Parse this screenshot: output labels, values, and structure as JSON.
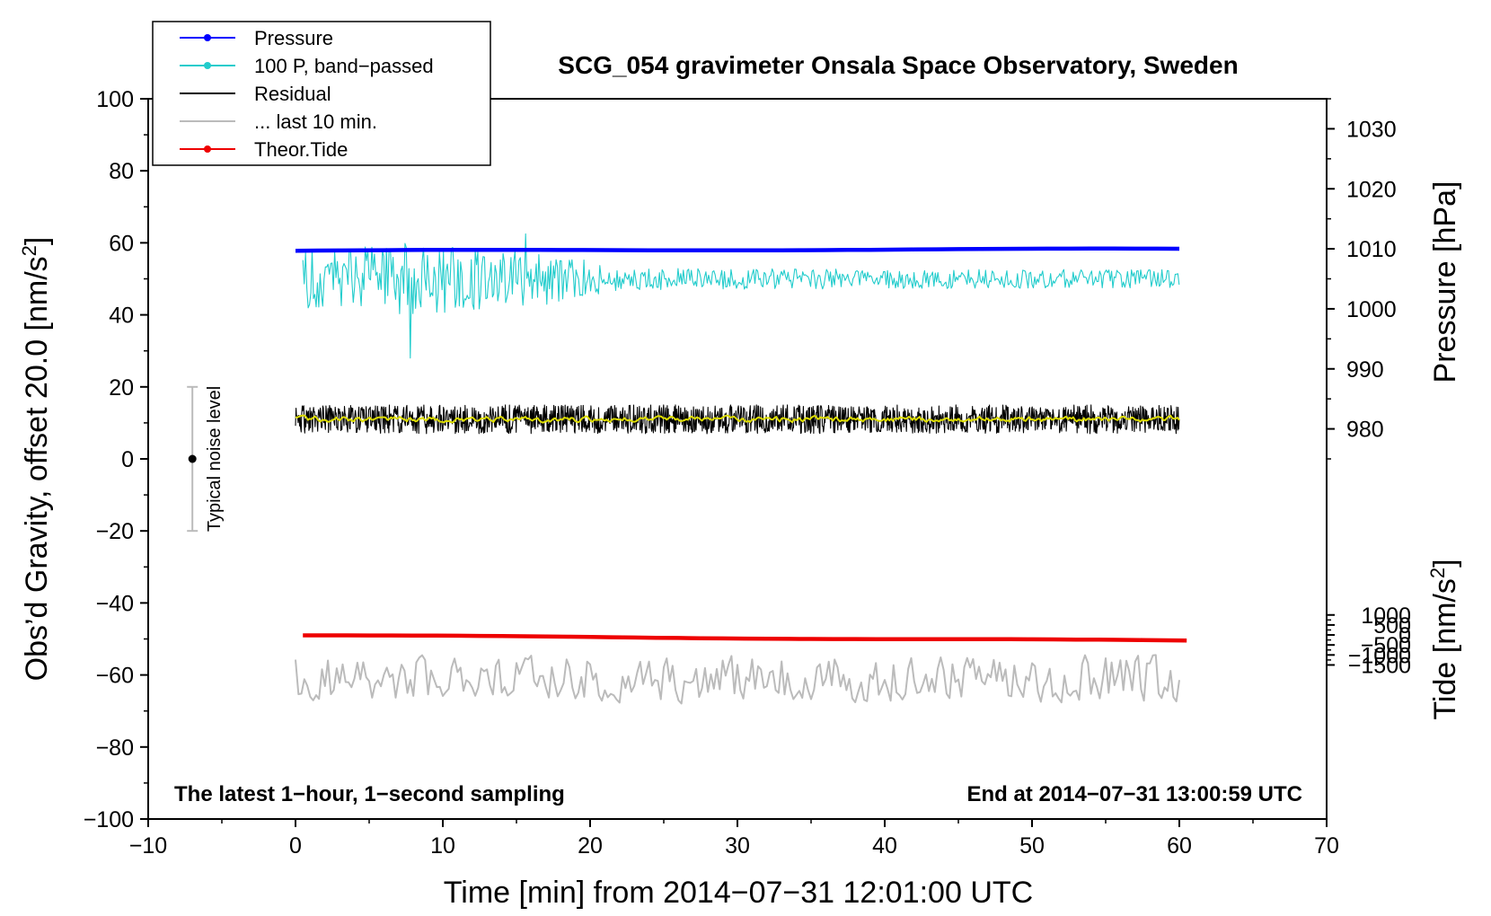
{
  "chart_data": {
    "type": "line",
    "title": "SCG_054 gravimeter Onsala Space Observatory, Sweden",
    "xlabel": "Time [min] from 2014−07−31 12:01:00 UTC",
    "ylabel_left": "Obs’d Gravity, offset 20.0 [nm/s",
    "ylabel_left_sup": "2",
    "ylabel_left_end": "]",
    "ylabel_right_pressure": "Pressure [hPa]",
    "ylabel_right_tide": "Tide [nm/s",
    "ylabel_right_tide_sup": "2",
    "ylabel_right_tide_end": "]",
    "xlim": [
      -10,
      70
    ],
    "ylim": [
      -100,
      100
    ],
    "x_ticks": [
      -10,
      0,
      10,
      20,
      30,
      40,
      50,
      60,
      70
    ],
    "x_tick_labels": [
      "−10",
      "0",
      "10",
      "20",
      "30",
      "40",
      "50",
      "60",
      "70"
    ],
    "y_ticks": [
      -100,
      -80,
      -60,
      -40,
      -20,
      0,
      20,
      40,
      60,
      80,
      100
    ],
    "y_tick_labels": [
      "−100",
      "−80",
      "−60",
      "−40",
      "−20",
      "0",
      "20",
      "40",
      "60",
      "80",
      "100"
    ],
    "pressure_ticks": [
      980,
      990,
      1000,
      1010,
      1020,
      1030
    ],
    "pressure_tick_labels": [
      "980",
      "990",
      "1000",
      "1010",
      "1020",
      "1030"
    ],
    "pressure_axis_map": {
      "pressure_at_left_0": 975,
      "pressure_per_left_unit": 0.6
    },
    "tide_ticks": [
      -1500,
      -1000,
      -500,
      0,
      500,
      1000
    ],
    "tide_tick_labels": [
      "−1500",
      "−1000",
      "−500",
      "0",
      "500",
      "1000"
    ],
    "tide_axis_map": {
      "tide_at_left_0": 8800,
      "tide_per_left_unit": 180
    },
    "legend": {
      "placement": "top-left",
      "entries": [
        {
          "label": "Pressure",
          "color": "#0000ff",
          "marker": true
        },
        {
          "label": "100 P, band−passed",
          "color": "#22cccc",
          "marker": true
        },
        {
          "label": "Residual",
          "color": "#000000",
          "marker": false
        },
        {
          "label": "... last 10 min.",
          "color": "#bbbbbb",
          "marker": false
        },
        {
          "label": "Theor.Tide",
          "color": "#ee0000",
          "marker": true
        }
      ]
    },
    "series": [
      {
        "name": "Pressure",
        "color": "#0000ff",
        "x_range": [
          0,
          60
        ],
        "level_start": 57.8,
        "level_end": 58.3,
        "display": "thick"
      },
      {
        "name": "100 P, band−passed",
        "color": "#22cccc",
        "x_range": [
          0.5,
          60
        ],
        "center": 50,
        "noise_profile": [
          {
            "x": 0.5,
            "amp": 8
          },
          {
            "x": 8,
            "amp": 10
          },
          {
            "x": 18,
            "amp": 7
          },
          {
            "x": 22,
            "amp": 3
          },
          {
            "x": 60,
            "amp": 2.5
          }
        ],
        "spikes": [
          {
            "x": 7.8,
            "y": 28
          },
          {
            "x": 15.6,
            "y": 62.5
          }
        ]
      },
      {
        "name": "Residual",
        "color": "#000000",
        "x_range": [
          0,
          60
        ],
        "center": 11,
        "amplitude": 4
      },
      {
        "name": "Residual smoothed",
        "color": "#dddd00",
        "x_range": [
          0,
          60
        ],
        "center": 11,
        "amplitude": 0.8
      },
      {
        "name": "... last 10 min.",
        "color": "#bbbbbb",
        "x_range": [
          0,
          60
        ],
        "center": -61,
        "amplitude": 4
      },
      {
        "name": "Theor.Tide",
        "color": "#ee0000",
        "x_range": [
          0.5,
          60.5
        ],
        "level_start": -49,
        "level_end": -50.5,
        "display": "thick"
      }
    ],
    "annotations": {
      "left_note": "The latest 1−hour, 1−second sampling",
      "right_note": "End at 2014−07−31 13:00:59 UTC",
      "noise_label": "Typical noise level",
      "noise_bar": {
        "x": -7,
        "y_center": 0,
        "y_low": -20,
        "y_high": 20
      }
    }
  }
}
